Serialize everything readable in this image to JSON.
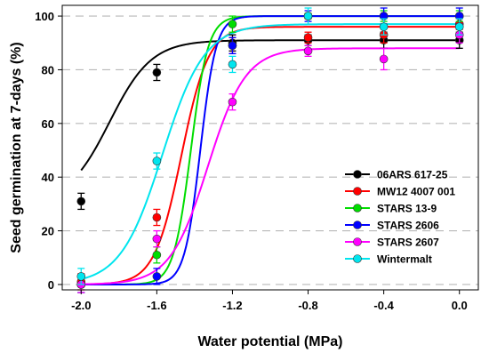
{
  "chart_data": {
    "type": "scatter",
    "title": "",
    "xlabel": "Water potential (MPa)",
    "ylabel": "Seed germination at 7-days (%)",
    "xlim": [
      -2.1,
      0.1
    ],
    "ylim": [
      -2,
      104
    ],
    "xticks": [
      -2.0,
      -1.6,
      -1.2,
      -0.8,
      -0.4,
      0.0
    ],
    "xtick_labels": [
      "-2.0",
      "-1.6",
      "-1.2",
      "-0.8",
      "-0.4",
      "0.0"
    ],
    "yticks": [
      0,
      20,
      40,
      60,
      80,
      100
    ],
    "ytick_labels": [
      "0",
      "20",
      "40",
      "60",
      "80",
      "100"
    ],
    "grid": "horizontal dashed",
    "legend_position": "bottom-right",
    "x": [
      -2.0,
      -1.6,
      -1.2,
      -0.8,
      -0.4,
      0.0
    ],
    "series": [
      {
        "name": "06ARS 617-25",
        "color": "#000000",
        "values": [
          31,
          79,
          90,
          91,
          91,
          91
        ],
        "errors": [
          3,
          3,
          3,
          2,
          3,
          3
        ],
        "fit": {
          "min": 30,
          "max": 91,
          "x50": -1.85,
          "slope": 9
        }
      },
      {
        "name": "MW12 4007 001",
        "color": "#ff0000",
        "values": [
          1,
          25,
          89,
          92,
          93,
          97
        ],
        "errors": [
          3,
          3,
          3,
          2,
          3,
          2
        ],
        "fit": {
          "min": 0,
          "max": 96,
          "x50": -1.47,
          "slope": 14
        }
      },
      {
        "name": "STARS 13-9",
        "color": "#00dd00",
        "values": [
          0,
          11,
          97,
          100,
          100,
          100
        ],
        "errors": [
          3,
          3,
          3,
          1,
          2,
          2
        ],
        "fit": {
          "min": 0,
          "max": 100,
          "x50": -1.42,
          "slope": 22
        }
      },
      {
        "name": "STARS 2606",
        "color": "#0000ff",
        "values": [
          0,
          3,
          89,
          100,
          100,
          100
        ],
        "errors": [
          3,
          3,
          3,
          2,
          3,
          3
        ],
        "fit": {
          "min": 0,
          "max": 100,
          "x50": -1.37,
          "slope": 24
        }
      },
      {
        "name": "STARS 2607",
        "color": "#ff00ff",
        "values": [
          0,
          17,
          68,
          87,
          84,
          93
        ],
        "errors": [
          3,
          3,
          3,
          2,
          4,
          3
        ],
        "fit": {
          "min": 0,
          "max": 88,
          "x50": -1.33,
          "slope": 10
        }
      },
      {
        "name": "Wintermalt",
        "color": "#00e5ee",
        "values": [
          3,
          46,
          82,
          100,
          96,
          96
        ],
        "errors": [
          3,
          3,
          3,
          3,
          3,
          3
        ],
        "fit": {
          "min": 0,
          "max": 97,
          "x50": -1.57,
          "slope": 9
        }
      }
    ]
  }
}
